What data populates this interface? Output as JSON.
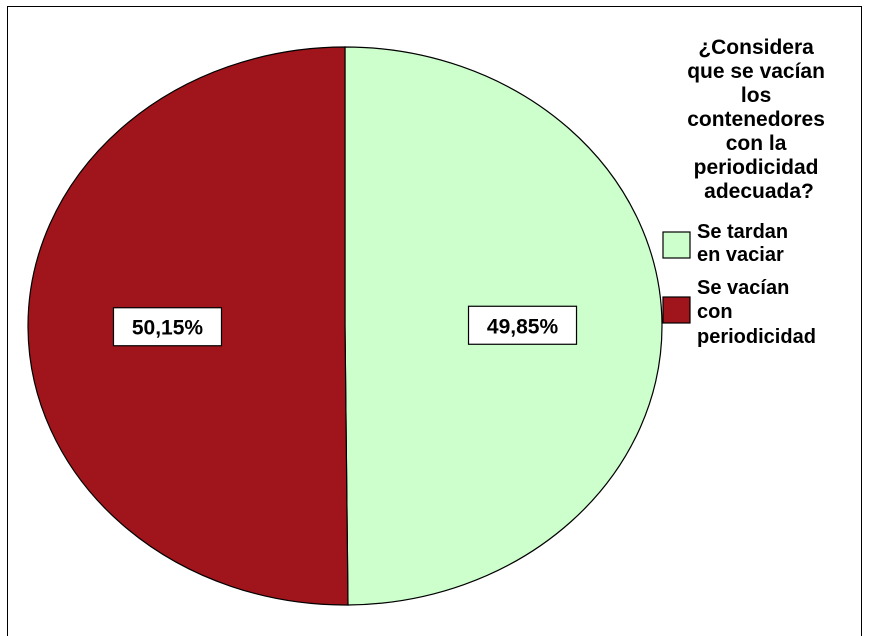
{
  "chart_data": {
    "type": "pie",
    "legend_title": "¿Considera que se vacían los contenedores con la periodicidad adecuada?",
    "legend_position": "right",
    "slices": [
      {
        "name": "Se tardan en vaciar",
        "value": 49.85,
        "label": "49,85%",
        "color": "#ccffcc"
      },
      {
        "name": "Se vacían con periodicidad",
        "value": 50.15,
        "label": "50,15%",
        "color": "#a0151b"
      }
    ]
  }
}
